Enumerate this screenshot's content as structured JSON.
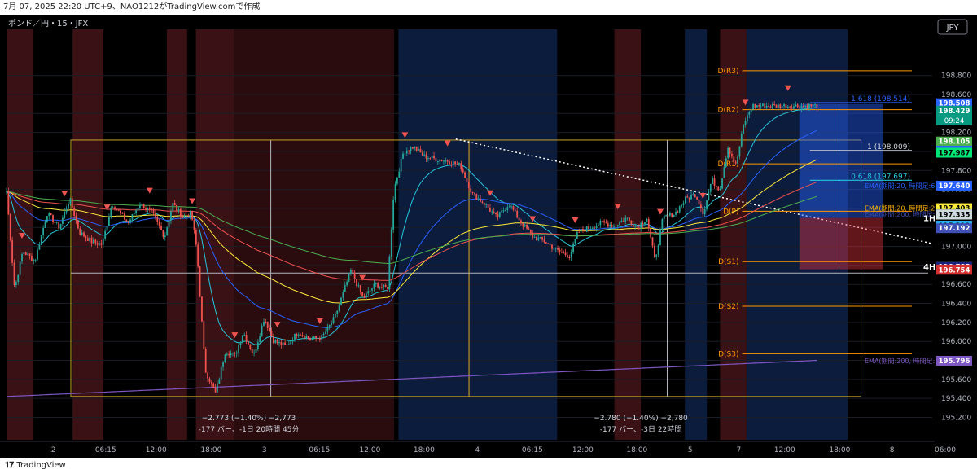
{
  "header": {
    "caption": "7月 07, 2025 22:20 UTC+9、NAO1212がTradingView.comで作成"
  },
  "footer": {
    "brand": "TradingView"
  },
  "chart_data": {
    "type": "candlestick",
    "title": "ポンド／円・15・JFX",
    "currency_button": "JPY",
    "ylim": [
      195.05,
      199.2
    ],
    "y_ticks": [
      198.8,
      198.6,
      198.4,
      198.2,
      198.0,
      197.8,
      197.6,
      197.4,
      197.2,
      197.0,
      196.8,
      196.6,
      196.4,
      196.2,
      196.0,
      195.8,
      195.6,
      195.4,
      195.2
    ],
    "y_tick_labels": [
      "198.800",
      "198.600",
      "198.400",
      "198.200",
      "198.000",
      "197.800",
      "197.600",
      "197.400",
      "197.200",
      "197.000",
      "196.800",
      "196.600",
      "196.400",
      "196.200",
      "196.000",
      "195.800",
      "195.600",
      "195.400",
      "195.200"
    ],
    "x_ticks": [
      {
        "label": "2",
        "pos": 0.028
      },
      {
        "label": "06:15",
        "pos": 0.085
      },
      {
        "label": "12:00",
        "pos": 0.14
      },
      {
        "label": "18:00",
        "pos": 0.2
      },
      {
        "label": "3",
        "pos": 0.258
      },
      {
        "label": "06:15",
        "pos": 0.318
      },
      {
        "label": "12:00",
        "pos": 0.373
      },
      {
        "label": "18:00",
        "pos": 0.432
      },
      {
        "label": "4",
        "pos": 0.49
      },
      {
        "label": "06:15",
        "pos": 0.55
      },
      {
        "label": "12:00",
        "pos": 0.605
      },
      {
        "label": "18:00",
        "pos": 0.664
      },
      {
        "label": "5",
        "pos": 0.722
      },
      {
        "label": "7",
        "pos": 0.775
      },
      {
        "label": "12:00",
        "pos": 0.825
      },
      {
        "label": "18:00",
        "pos": 0.885
      },
      {
        "label": "8",
        "pos": 0.942
      },
      {
        "label": "06:00",
        "pos": 1.0
      }
    ],
    "price_tags": [
      {
        "label": "198.508",
        "value": 198.508,
        "bg": "#2962ff",
        "fg": "#ffffff"
      },
      {
        "label": "198.429",
        "value": 198.429,
        "bg": "#089981",
        "fg": "#ffffff",
        "sub": "09:24"
      },
      {
        "label": "198.105",
        "value": 198.105,
        "bg": "#4caf50",
        "fg": "#ffffff"
      },
      {
        "label": "198.008",
        "value": 198.008,
        "bg": "#2962ff",
        "fg": "#ffffff"
      },
      {
        "label": "197.987",
        "value": 197.987,
        "bg": "#00e676",
        "fg": "#000000"
      },
      {
        "label": "197.640",
        "value": 197.64,
        "bg": "#2962ff",
        "fg": "#ffffff"
      },
      {
        "label": "197.403",
        "value": 197.403,
        "bg": "#ffeb3b",
        "fg": "#000000"
      },
      {
        "label": "197.341",
        "value": 197.341,
        "bg": "#8bc34a",
        "fg": "#000000"
      },
      {
        "label": "197.338",
        "value": 197.338,
        "bg": "#9e9e9e",
        "fg": "#000000"
      },
      {
        "label": "197.335",
        "value": 197.335,
        "bg": "#cfd8dc",
        "fg": "#000000"
      },
      {
        "label": "197.219",
        "value": 197.219,
        "bg": "#29b6f6",
        "fg": "#000000"
      },
      {
        "label": "197.192",
        "value": 197.192,
        "bg": "#3f51b5",
        "fg": "#ffffff"
      },
      {
        "label": "196.785",
        "value": 196.785,
        "bg": "#4caf50",
        "fg": "#ffffff"
      },
      {
        "label": "196.785",
        "value": 196.785,
        "bg": "#1a237e",
        "fg": "#ffffff"
      },
      {
        "label": "196.757",
        "value": 196.757,
        "bg": "#f23645",
        "fg": "#ffffff"
      },
      {
        "label": "196.754",
        "value": 196.754,
        "bg": "#d32f2f",
        "fg": "#ffffff"
      },
      {
        "label": "195.796",
        "value": 195.796,
        "bg": "#7e57c2",
        "fg": "#ffffff"
      }
    ],
    "pivots": [
      {
        "label": "D(R3)",
        "value": 198.85,
        "x0": 0.835,
        "color": "#ff9800"
      },
      {
        "label": "D(R2)",
        "value": 198.44,
        "x0": 0.835,
        "color": "#ff9800"
      },
      {
        "label": "D(R1)",
        "value": 197.87,
        "x0": 0.835,
        "color": "#ff9800"
      },
      {
        "label": "D(P)",
        "value": 197.37,
        "x0": 0.835,
        "color": "#ff9800"
      },
      {
        "label": "D(S1)",
        "value": 196.84,
        "x0": 0.835,
        "color": "#ff9800"
      },
      {
        "label": "D(S2)",
        "value": 196.37,
        "x0": 0.835,
        "color": "#ff9800"
      },
      {
        "label": "D(S3)",
        "value": 195.87,
        "x0": 0.835,
        "color": "#ff9800"
      }
    ],
    "fib_levels": [
      {
        "label": "1.618 (198.514)",
        "value": 198.514,
        "x0": 0.912,
        "color": "#2962ff"
      },
      {
        "label": "1 (198.009)",
        "value": 198.009,
        "x0": 0.912,
        "color": "#d1d4dc"
      },
      {
        "label": "0.618 (197.697)",
        "value": 197.697,
        "x0": 0.912,
        "color": "#26c6da"
      }
    ],
    "ema_labels": [
      {
        "label": "EMA(期間:20, 時間足:60)",
        "value": 197.64,
        "color": "#2962ff"
      },
      {
        "label": "EMA(期間:20, 時間足:240)",
        "value": 197.403,
        "color": "#ffb300"
      },
      {
        "label": "EMA(期間:200, 時間足:60)",
        "value": 197.338,
        "color": "#3949ab"
      },
      {
        "label": "EMA(期間:200, 時間足:240)",
        "value": 195.796,
        "color": "#7e57c2"
      }
    ],
    "tf_labels": [
      {
        "label": "1H",
        "value": 197.3
      },
      {
        "label": "4H",
        "value": 196.79
      }
    ],
    "measure_labels": [
      {
        "line1": "−2.773 (−1.40%) −2,773",
        "line2": "-177 バー、-1日 20時間 45分",
        "x": 0.275
      },
      {
        "line1": "−2.780 (−1.40%) −2,780",
        "line2": "-177 バー、-3日 22時間",
        "x": 0.72
      }
    ],
    "anchors": [
      {
        "x": 0.0,
        "y": 197.58
      },
      {
        "x": 0.01,
        "y": 196.55
      },
      {
        "x": 0.02,
        "y": 196.95
      },
      {
        "x": 0.035,
        "y": 196.85
      },
      {
        "x": 0.05,
        "y": 197.35
      },
      {
        "x": 0.065,
        "y": 197.2
      },
      {
        "x": 0.078,
        "y": 197.5
      },
      {
        "x": 0.09,
        "y": 197.15
      },
      {
        "x": 0.105,
        "y": 197.05
      },
      {
        "x": 0.118,
        "y": 197.02
      },
      {
        "x": 0.13,
        "y": 197.45
      },
      {
        "x": 0.15,
        "y": 197.25
      },
      {
        "x": 0.165,
        "y": 197.45
      },
      {
        "x": 0.18,
        "y": 197.35
      },
      {
        "x": 0.195,
        "y": 197.1
      },
      {
        "x": 0.205,
        "y": 197.45
      },
      {
        "x": 0.218,
        "y": 197.3
      },
      {
        "x": 0.228,
        "y": 197.35
      },
      {
        "x": 0.235,
        "y": 196.95
      },
      {
        "x": 0.245,
        "y": 195.7
      },
      {
        "x": 0.258,
        "y": 195.45
      },
      {
        "x": 0.27,
        "y": 195.9
      },
      {
        "x": 0.282,
        "y": 195.85
      },
      {
        "x": 0.292,
        "y": 196.1
      },
      {
        "x": 0.305,
        "y": 195.85
      },
      {
        "x": 0.318,
        "y": 196.25
      },
      {
        "x": 0.33,
        "y": 196.0
      },
      {
        "x": 0.345,
        "y": 195.95
      },
      {
        "x": 0.36,
        "y": 196.1
      },
      {
        "x": 0.375,
        "y": 196.02
      },
      {
        "x": 0.39,
        "y": 196.05
      },
      {
        "x": 0.405,
        "y": 196.25
      },
      {
        "x": 0.425,
        "y": 196.75
      },
      {
        "x": 0.44,
        "y": 196.45
      },
      {
        "x": 0.455,
        "y": 196.6
      },
      {
        "x": 0.47,
        "y": 196.55
      },
      {
        "x": 0.478,
        "y": 197.6
      },
      {
        "x": 0.49,
        "y": 198.0
      },
      {
        "x": 0.502,
        "y": 198.05
      },
      {
        "x": 0.515,
        "y": 197.95
      },
      {
        "x": 0.53,
        "y": 197.92
      },
      {
        "x": 0.545,
        "y": 197.9
      },
      {
        "x": 0.56,
        "y": 197.85
      },
      {
        "x": 0.575,
        "y": 197.55
      },
      {
        "x": 0.59,
        "y": 197.45
      },
      {
        "x": 0.605,
        "y": 197.3
      },
      {
        "x": 0.62,
        "y": 197.45
      },
      {
        "x": 0.635,
        "y": 197.25
      },
      {
        "x": 0.65,
        "y": 197.1
      },
      {
        "x": 0.665,
        "y": 197.05
      },
      {
        "x": 0.68,
        "y": 196.95
      },
      {
        "x": 0.695,
        "y": 196.9
      },
      {
        "x": 0.705,
        "y": 197.15
      },
      {
        "x": 0.72,
        "y": 197.2
      },
      {
        "x": 0.735,
        "y": 197.25
      },
      {
        "x": 0.75,
        "y": 197.22
      },
      {
        "x": 0.765,
        "y": 197.3
      },
      {
        "x": 0.778,
        "y": 197.2
      },
      {
        "x": 0.79,
        "y": 197.3
      },
      {
        "x": 0.8,
        "y": 196.85
      },
      {
        "x": 0.81,
        "y": 197.3
      },
      {
        "x": 0.825,
        "y": 197.35
      },
      {
        "x": 0.838,
        "y": 197.5
      },
      {
        "x": 0.85,
        "y": 197.55
      },
      {
        "x": 0.86,
        "y": 197.35
      },
      {
        "x": 0.87,
        "y": 197.7
      },
      {
        "x": 0.88,
        "y": 197.6
      },
      {
        "x": 0.89,
        "y": 198.05
      },
      {
        "x": 0.9,
        "y": 197.85
      },
      {
        "x": 0.91,
        "y": 198.3
      },
      {
        "x": 0.92,
        "y": 198.48
      }
    ]
  }
}
